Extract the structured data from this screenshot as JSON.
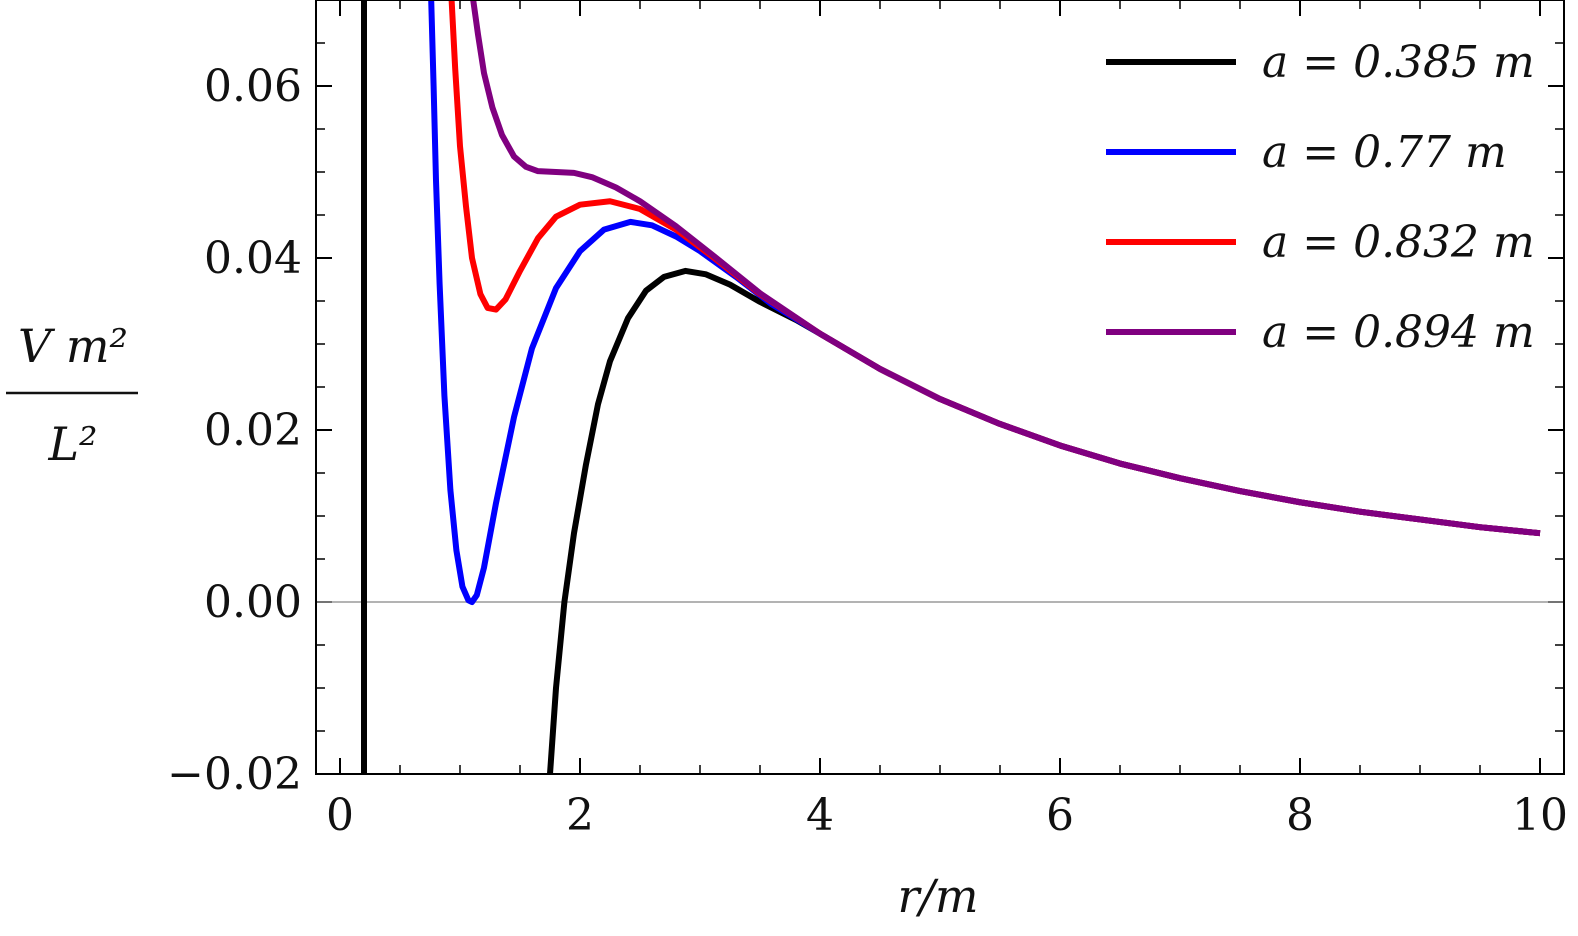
{
  "chart_data": {
    "type": "line",
    "title": "",
    "xlabel": "r/m",
    "ylabel": {
      "numerator": "V m²",
      "denominator": "L²"
    },
    "xlim": [
      -0.2,
      10.2
    ],
    "ylim": [
      -0.02,
      0.07
    ],
    "xticks": [
      0,
      2,
      4,
      6,
      8,
      10
    ],
    "xtick_labels": [
      "0",
      "2",
      "4",
      "6",
      "8",
      "10"
    ],
    "yticks": [
      -0.02,
      0.0,
      0.02,
      0.04,
      0.06
    ],
    "ytick_labels": [
      "−0.02",
      "0.00",
      "0.02",
      "0.04",
      "0.06"
    ],
    "zero_line": true,
    "grid": false,
    "legend_position": "top-right",
    "series": [
      {
        "name": "a = 0.385 m",
        "color": "#000000",
        "points": [
          [
            0.2,
            -0.02
          ],
          [
            0.2,
            0.07
          ],
          [
            1.75,
            -0.02
          ],
          [
            1.8,
            -0.01
          ],
          [
            1.87,
            0.0
          ],
          [
            1.95,
            0.008
          ],
          [
            2.05,
            0.016
          ],
          [
            2.15,
            0.023
          ],
          [
            2.25,
            0.028
          ],
          [
            2.4,
            0.033
          ],
          [
            2.55,
            0.0362
          ],
          [
            2.7,
            0.0378
          ],
          [
            2.88,
            0.0385
          ],
          [
            3.05,
            0.0381
          ],
          [
            3.25,
            0.0369
          ],
          [
            3.5,
            0.0349
          ],
          [
            3.8,
            0.0328
          ],
          [
            4.0,
            0.0312
          ],
          [
            4.5,
            0.0271
          ],
          [
            5.0,
            0.0236
          ],
          [
            5.5,
            0.0207
          ],
          [
            6.0,
            0.0182
          ],
          [
            6.5,
            0.0161
          ],
          [
            7.0,
            0.0144
          ],
          [
            7.5,
            0.0129
          ],
          [
            8.0,
            0.0116
          ],
          [
            8.5,
            0.0105
          ],
          [
            9.0,
            0.0096
          ],
          [
            9.5,
            0.0087
          ],
          [
            10.0,
            0.008
          ]
        ]
      },
      {
        "name": "a = 0.77 m",
        "color": "#0000ff",
        "points": [
          [
            0.76,
            0.07
          ],
          [
            0.78,
            0.06
          ],
          [
            0.8,
            0.049
          ],
          [
            0.83,
            0.037
          ],
          [
            0.87,
            0.024
          ],
          [
            0.92,
            0.013
          ],
          [
            0.97,
            0.006
          ],
          [
            1.02,
            0.0018
          ],
          [
            1.07,
            0.0002
          ],
          [
            1.1,
            0.0
          ],
          [
            1.14,
            0.0008
          ],
          [
            1.2,
            0.004
          ],
          [
            1.3,
            0.0115
          ],
          [
            1.45,
            0.0215
          ],
          [
            1.6,
            0.0295
          ],
          [
            1.8,
            0.0365
          ],
          [
            2.0,
            0.0408
          ],
          [
            2.2,
            0.0433
          ],
          [
            2.42,
            0.0442
          ],
          [
            2.6,
            0.0438
          ],
          [
            2.8,
            0.0425
          ],
          [
            3.0,
            0.0408
          ],
          [
            3.3,
            0.0378
          ],
          [
            3.6,
            0.0346
          ],
          [
            4.0,
            0.0312
          ],
          [
            4.5,
            0.0271
          ],
          [
            5.0,
            0.0236
          ],
          [
            5.5,
            0.0207
          ],
          [
            6.0,
            0.0182
          ],
          [
            6.5,
            0.0161
          ],
          [
            7.0,
            0.0144
          ],
          [
            7.5,
            0.0129
          ],
          [
            8.0,
            0.0116
          ],
          [
            8.5,
            0.0105
          ],
          [
            9.0,
            0.0096
          ],
          [
            9.5,
            0.0087
          ],
          [
            10.0,
            0.008
          ]
        ]
      },
      {
        "name": "a = 0.832 m",
        "color": "#ff0000",
        "points": [
          [
            0.93,
            0.07
          ],
          [
            0.96,
            0.062
          ],
          [
            1.0,
            0.053
          ],
          [
            1.05,
            0.046
          ],
          [
            1.1,
            0.04
          ],
          [
            1.17,
            0.0358
          ],
          [
            1.23,
            0.0342
          ],
          [
            1.3,
            0.034
          ],
          [
            1.38,
            0.0352
          ],
          [
            1.5,
            0.0385
          ],
          [
            1.65,
            0.0423
          ],
          [
            1.8,
            0.0448
          ],
          [
            2.0,
            0.0462
          ],
          [
            2.25,
            0.0466
          ],
          [
            2.5,
            0.0457
          ],
          [
            2.8,
            0.0433
          ],
          [
            3.1,
            0.0402
          ],
          [
            3.5,
            0.0358
          ],
          [
            4.0,
            0.0312
          ],
          [
            4.5,
            0.0271
          ],
          [
            5.0,
            0.0236
          ],
          [
            5.5,
            0.0207
          ],
          [
            6.0,
            0.0182
          ],
          [
            6.5,
            0.0161
          ],
          [
            7.0,
            0.0144
          ],
          [
            7.5,
            0.0129
          ],
          [
            8.0,
            0.0116
          ],
          [
            8.5,
            0.0105
          ],
          [
            9.0,
            0.0096
          ],
          [
            9.5,
            0.0087
          ],
          [
            10.0,
            0.008
          ]
        ]
      },
      {
        "name": "a = 0.894 m",
        "color": "#800080",
        "points": [
          [
            1.11,
            0.07
          ],
          [
            1.15,
            0.066
          ],
          [
            1.2,
            0.0615
          ],
          [
            1.27,
            0.0575
          ],
          [
            1.35,
            0.0543
          ],
          [
            1.45,
            0.0518
          ],
          [
            1.55,
            0.0506
          ],
          [
            1.65,
            0.0501
          ],
          [
            1.8,
            0.05
          ],
          [
            1.95,
            0.0499
          ],
          [
            2.1,
            0.0494
          ],
          [
            2.3,
            0.0482
          ],
          [
            2.5,
            0.0466
          ],
          [
            2.8,
            0.0437
          ],
          [
            3.1,
            0.0404
          ],
          [
            3.5,
            0.0359
          ],
          [
            4.0,
            0.0312
          ],
          [
            4.5,
            0.0271
          ],
          [
            5.0,
            0.0236
          ],
          [
            5.5,
            0.0207
          ],
          [
            6.0,
            0.0182
          ],
          [
            6.5,
            0.0161
          ],
          [
            7.0,
            0.0144
          ],
          [
            7.5,
            0.0129
          ],
          [
            8.0,
            0.0116
          ],
          [
            8.5,
            0.0105
          ],
          [
            9.0,
            0.0096
          ],
          [
            9.5,
            0.0087
          ],
          [
            10.0,
            0.008
          ]
        ]
      }
    ]
  }
}
